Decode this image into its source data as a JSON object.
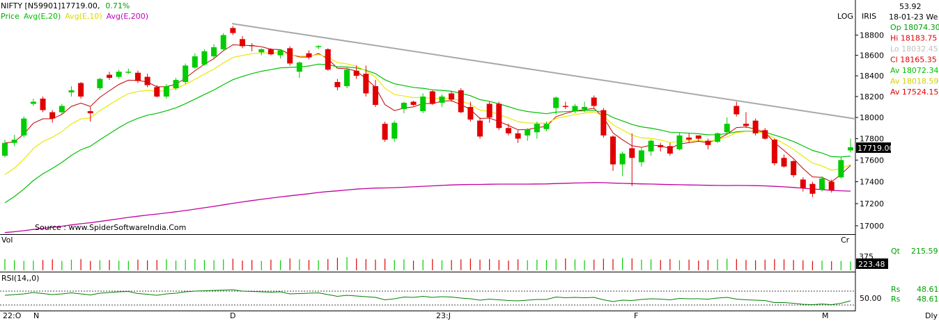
{
  "header": {
    "symbol": "NIFTY [N59901]",
    "last": "17719.00,",
    "change": "0.71%",
    "legend": [
      {
        "label": "Price",
        "color": "#00aa00"
      },
      {
        "label": "Avg(E,20)",
        "color": "#00c000"
      },
      {
        "label": "Avg(E,10)",
        "color": "#d8d800"
      },
      {
        "label": "Avg(E,200)",
        "color": "#c000c0"
      }
    ],
    "log_button": "LOG",
    "iris_button": "IRIS"
  },
  "info_panel": {
    "value": "53.92",
    "date": "18-01-23 We",
    "rows": [
      {
        "label": "Op",
        "value": "18074.30",
        "color": "#00a000"
      },
      {
        "label": "Hi",
        "value": "18183.75",
        "color": "#e00000"
      },
      {
        "label": "Lo",
        "value": "18032.45",
        "color": "#c0c0c0"
      },
      {
        "label": "Cl",
        "value": "18165.35",
        "color": "#e00000"
      },
      {
        "label": "Av",
        "value": "18072.34",
        "color": "#00c000"
      },
      {
        "label": "Av",
        "value": "18018.59",
        "color": "#d0d000"
      },
      {
        "label": "Av",
        "value": "17524.15",
        "color": "#e00000"
      }
    ],
    "qt_label": "Qt",
    "qt_value": "215.59",
    "rs_rows": [
      {
        "label": "Rs",
        "value": "48.61"
      },
      {
        "label": "Rs",
        "value": "48.61"
      }
    ]
  },
  "source_note": "Source : www.SpiderSoftwareIndia.Com",
  "price_tag": "17719.00",
  "volume_panel": {
    "label": "Vol",
    "cr_label": "Cr",
    "axis_label": "375",
    "current": "223.48"
  },
  "rsi_panel": {
    "label": "RSI(14,,0)",
    "axis_label": "50.00"
  },
  "x_labels": [
    "22:O",
    "N",
    "D",
    "23:J",
    "F",
    "M",
    "Dly"
  ],
  "chart_data": {
    "type": "candlestick",
    "yscale": "log",
    "ylim": [
      16950,
      18900
    ],
    "y_ticks": [
      17000,
      17200,
      17400,
      17600,
      17800,
      18000,
      18200,
      18400,
      18600,
      18800
    ],
    "candles": [
      {
        "o": 17640,
        "h": 17790,
        "l": 17625,
        "c": 17760
      },
      {
        "o": 17760,
        "h": 17835,
        "l": 17730,
        "c": 17790
      },
      {
        "o": 17830,
        "h": 18010,
        "l": 17810,
        "c": 17990
      },
      {
        "o": 18130,
        "h": 18180,
        "l": 18110,
        "c": 18150
      },
      {
        "o": 18180,
        "h": 18200,
        "l": 18050,
        "c": 18070
      },
      {
        "o": 18050,
        "h": 18070,
        "l": 17950,
        "c": 17990
      },
      {
        "o": 18050,
        "h": 18130,
        "l": 18030,
        "c": 18110
      },
      {
        "o": 18240,
        "h": 18300,
        "l": 18200,
        "c": 18260
      },
      {
        "o": 18330,
        "h": 18340,
        "l": 18180,
        "c": 18200
      },
      {
        "o": 18060,
        "h": 18100,
        "l": 17960,
        "c": 18040
      },
      {
        "o": 18280,
        "h": 18380,
        "l": 18260,
        "c": 18370
      },
      {
        "o": 18410,
        "h": 18440,
        "l": 18360,
        "c": 18380
      },
      {
        "o": 18390,
        "h": 18460,
        "l": 18370,
        "c": 18440
      },
      {
        "o": 18430,
        "h": 18470,
        "l": 18420,
        "c": 18440
      },
      {
        "o": 18430,
        "h": 18450,
        "l": 18330,
        "c": 18350
      },
      {
        "o": 18390,
        "h": 18420,
        "l": 18290,
        "c": 18310
      },
      {
        "o": 18290,
        "h": 18310,
        "l": 18190,
        "c": 18200
      },
      {
        "o": 18200,
        "h": 18320,
        "l": 18180,
        "c": 18300
      },
      {
        "o": 18280,
        "h": 18380,
        "l": 18260,
        "c": 18360
      },
      {
        "o": 18340,
        "h": 18520,
        "l": 18320,
        "c": 18500
      },
      {
        "o": 18480,
        "h": 18620,
        "l": 18470,
        "c": 18590
      },
      {
        "o": 18510,
        "h": 18660,
        "l": 18500,
        "c": 18640
      },
      {
        "o": 18590,
        "h": 18710,
        "l": 18560,
        "c": 18680
      },
      {
        "o": 18660,
        "h": 18820,
        "l": 18640,
        "c": 18800
      },
      {
        "o": 18870,
        "h": 18890,
        "l": 18800,
        "c": 18820
      },
      {
        "o": 18760,
        "h": 18790,
        "l": 18670,
        "c": 18690
      },
      {
        "o": 18700,
        "h": 18720,
        "l": 18640,
        "c": 18690
      },
      {
        "o": 18630,
        "h": 18670,
        "l": 18600,
        "c": 18660
      },
      {
        "o": 18660,
        "h": 18670,
        "l": 18600,
        "c": 18610
      },
      {
        "o": 18600,
        "h": 18660,
        "l": 18570,
        "c": 18650
      },
      {
        "o": 18670,
        "h": 18690,
        "l": 18500,
        "c": 18520
      },
      {
        "o": 18440,
        "h": 18540,
        "l": 18380,
        "c": 18530
      },
      {
        "o": 18620,
        "h": 18650,
        "l": 18560,
        "c": 18580
      },
      {
        "o": 18680,
        "h": 18700,
        "l": 18660,
        "c": 18690
      },
      {
        "o": 18660,
        "h": 18670,
        "l": 18450,
        "c": 18460
      },
      {
        "o": 18340,
        "h": 18370,
        "l": 18260,
        "c": 18290
      },
      {
        "o": 18300,
        "h": 18480,
        "l": 18280,
        "c": 18460
      },
      {
        "o": 18450,
        "h": 18500,
        "l": 18370,
        "c": 18400
      },
      {
        "o": 18420,
        "h": 18500,
        "l": 18200,
        "c": 18230
      },
      {
        "o": 18300,
        "h": 18360,
        "l": 18100,
        "c": 18120
      },
      {
        "o": 17940,
        "h": 17960,
        "l": 17770,
        "c": 17790
      },
      {
        "o": 17800,
        "h": 17970,
        "l": 17770,
        "c": 17950
      },
      {
        "o": 18080,
        "h": 18150,
        "l": 18040,
        "c": 18140
      },
      {
        "o": 18150,
        "h": 18160,
        "l": 18110,
        "c": 18120
      },
      {
        "o": 18060,
        "h": 18230,
        "l": 18040,
        "c": 18200
      },
      {
        "o": 18250,
        "h": 18260,
        "l": 18120,
        "c": 18130
      },
      {
        "o": 18140,
        "h": 18220,
        "l": 18100,
        "c": 18200
      },
      {
        "o": 18230,
        "h": 18250,
        "l": 18150,
        "c": 18170
      },
      {
        "o": 18260,
        "h": 18280,
        "l": 18040,
        "c": 18050
      },
      {
        "o": 18100,
        "h": 18150,
        "l": 17960,
        "c": 17980
      },
      {
        "o": 17970,
        "h": 18000,
        "l": 17800,
        "c": 17820
      },
      {
        "o": 18130,
        "h": 18150,
        "l": 17950,
        "c": 18000
      },
      {
        "o": 18130,
        "h": 18150,
        "l": 17880,
        "c": 17900
      },
      {
        "o": 17900,
        "h": 17940,
        "l": 17830,
        "c": 17850
      },
      {
        "o": 17850,
        "h": 17880,
        "l": 17760,
        "c": 17800
      },
      {
        "o": 17830,
        "h": 17900,
        "l": 17780,
        "c": 17890
      },
      {
        "o": 17860,
        "h": 17960,
        "l": 17800,
        "c": 17940
      },
      {
        "o": 17890,
        "h": 17960,
        "l": 17870,
        "c": 17940
      },
      {
        "o": 18090,
        "h": 18200,
        "l": 18030,
        "c": 18190
      },
      {
        "o": 18110,
        "h": 18150,
        "l": 18080,
        "c": 18100
      },
      {
        "o": 18060,
        "h": 18130,
        "l": 18040,
        "c": 18110
      },
      {
        "o": 18080,
        "h": 18150,
        "l": 18050,
        "c": 18100
      },
      {
        "o": 18190,
        "h": 18210,
        "l": 18090,
        "c": 18110
      },
      {
        "o": 18070,
        "h": 18090,
        "l": 17810,
        "c": 17830
      },
      {
        "o": 17820,
        "h": 17830,
        "l": 17500,
        "c": 17560
      },
      {
        "o": 17560,
        "h": 17680,
        "l": 17450,
        "c": 17660
      },
      {
        "o": 17710,
        "h": 17850,
        "l": 17360,
        "c": 17620
      },
      {
        "o": 17580,
        "h": 17720,
        "l": 17540,
        "c": 17690
      },
      {
        "o": 17680,
        "h": 17790,
        "l": 17640,
        "c": 17780
      },
      {
        "o": 17740,
        "h": 17760,
        "l": 17680,
        "c": 17720
      },
      {
        "o": 17730,
        "h": 17760,
        "l": 17640,
        "c": 17660
      },
      {
        "o": 17700,
        "h": 17860,
        "l": 17690,
        "c": 17830
      },
      {
        "o": 17810,
        "h": 17850,
        "l": 17760,
        "c": 17790
      },
      {
        "o": 17830,
        "h": 17830,
        "l": 17780,
        "c": 17800
      },
      {
        "o": 17780,
        "h": 17800,
        "l": 17700,
        "c": 17740
      },
      {
        "o": 17770,
        "h": 17860,
        "l": 17760,
        "c": 17850
      },
      {
        "o": 17860,
        "h": 18000,
        "l": 17840,
        "c": 17940
      },
      {
        "o": 18110,
        "h": 18150,
        "l": 18010,
        "c": 18030
      },
      {
        "o": 17940,
        "h": 18050,
        "l": 17900,
        "c": 17920
      },
      {
        "o": 17970,
        "h": 17990,
        "l": 17830,
        "c": 17850
      },
      {
        "o": 17880,
        "h": 17900,
        "l": 17790,
        "c": 17800
      },
      {
        "o": 17790,
        "h": 17800,
        "l": 17550,
        "c": 17570
      },
      {
        "o": 17620,
        "h": 17650,
        "l": 17530,
        "c": 17540
      },
      {
        "o": 17590,
        "h": 17600,
        "l": 17440,
        "c": 17460
      },
      {
        "o": 17420,
        "h": 17440,
        "l": 17310,
        "c": 17340
      },
      {
        "o": 17380,
        "h": 17400,
        "l": 17260,
        "c": 17290
      },
      {
        "o": 17330,
        "h": 17450,
        "l": 17310,
        "c": 17430
      },
      {
        "o": 17400,
        "h": 17420,
        "l": 17300,
        "c": 17320
      },
      {
        "o": 17440,
        "h": 17630,
        "l": 17430,
        "c": 17600
      },
      {
        "o": 17690,
        "h": 17800,
        "l": 17670,
        "c": 17719
      }
    ],
    "volume": [
      36,
      32,
      30,
      31,
      33,
      35,
      30,
      34,
      36,
      30,
      32,
      33,
      31,
      30,
      34,
      32,
      33,
      35,
      31,
      34,
      36,
      33,
      32,
      35,
      37,
      31,
      33,
      30,
      34,
      32,
      38,
      35,
      33,
      32,
      36,
      40,
      42,
      38,
      36,
      34,
      37,
      33,
      35,
      31,
      34,
      36,
      32,
      33,
      35,
      37,
      34,
      36,
      33,
      31,
      35,
      32,
      34,
      33,
      36,
      38,
      35,
      32,
      34,
      37,
      36,
      40,
      38,
      34,
      35,
      33,
      36,
      32,
      34,
      31,
      33,
      35,
      37,
      36,
      33,
      32,
      34,
      36,
      35,
      33,
      32,
      30,
      31,
      29,
      30,
      28
    ],
    "rsi": [
      58,
      60,
      62,
      66,
      63,
      60,
      62,
      65,
      62,
      59,
      64,
      66,
      68,
      69,
      63,
      61,
      58,
      62,
      64,
      68,
      70,
      71,
      72,
      73,
      74,
      70,
      69,
      68,
      67,
      68,
      62,
      63,
      64,
      65,
      60,
      55,
      58,
      56,
      54,
      52,
      45,
      48,
      53,
      52,
      55,
      52,
      54,
      53,
      50,
      48,
      44,
      47,
      45,
      43,
      42,
      44,
      46,
      46,
      53,
      51,
      52,
      51,
      52,
      45,
      40,
      44,
      43,
      46,
      48,
      47,
      45,
      49,
      48,
      48,
      47,
      50,
      52,
      47,
      45,
      44,
      43,
      37,
      37,
      35,
      32,
      31,
      33,
      31,
      35,
      42
    ]
  }
}
